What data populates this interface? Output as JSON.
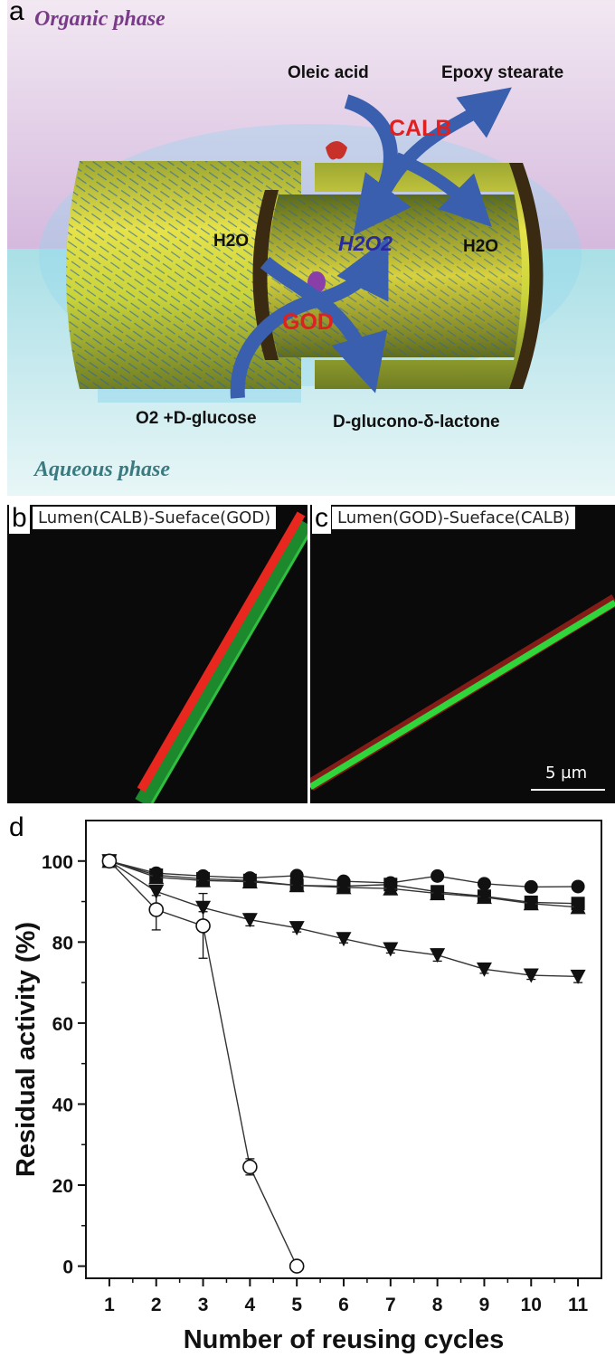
{
  "panel_a": {
    "letter": "a",
    "organic_phase": "Organic phase",
    "aqueous_phase": "Aqueous phase",
    "oleic_acid": "Oleic acid",
    "epoxy_stearate": "Epoxy stearate",
    "calb": "CALB",
    "god": "GOD",
    "h2o_left": "H2O",
    "h2o_right": "H2O",
    "h2o2": "H2O2",
    "o2_glucose": "O2 +D-glucose",
    "gluconolactone": "D-glucono-δ-lactone",
    "colors": {
      "enzyme_label": "#e0201e",
      "h2o2": "#2a2aa0",
      "arrow": "#3a5fae",
      "organic_bg": "#dcc7e3",
      "aqueous_bg": "#bfe6ea",
      "phase_text_top": "#7a3a8a",
      "phase_text_bottom": "#3a7a80"
    }
  },
  "panel_b": {
    "letter": "b",
    "title": "Lumen(CALB)-Sueface(GOD)"
  },
  "panel_c": {
    "letter": "c",
    "title": "Lumen(GOD)-Sueface(CALB)",
    "scale_bar": "5 µm"
  },
  "panel_d": {
    "letter": "d"
  },
  "chart_data": {
    "type": "line",
    "xlabel": "Number of reusing cycles",
    "ylabel": "Residual activity (%)",
    "xlim": [
      0.5,
      11.5
    ],
    "ylim": [
      -3,
      110
    ],
    "x_ticks": [
      1,
      2,
      3,
      4,
      5,
      6,
      7,
      8,
      9,
      10,
      11
    ],
    "y_ticks": [
      0,
      20,
      40,
      60,
      80,
      100
    ],
    "grid": false,
    "legend": "none",
    "series": [
      {
        "marker": "circle-filled",
        "x": [
          1,
          2,
          3,
          4,
          5,
          6,
          7,
          8,
          9,
          10,
          11
        ],
        "values": [
          100,
          97,
          96.3,
          95.8,
          96.4,
          95,
          94.6,
          96.3,
          94.4,
          93.6,
          93.7
        ]
      },
      {
        "marker": "square-filled",
        "x": [
          1,
          2,
          3,
          4,
          5,
          6,
          7,
          8,
          9,
          10,
          11
        ],
        "values": [
          100,
          96.5,
          95.6,
          95.2,
          94,
          93.8,
          94.2,
          92.4,
          91.3,
          89.8,
          89.5
        ]
      },
      {
        "marker": "triangle-up-filled",
        "x": [
          1,
          2,
          3,
          4,
          5,
          6,
          7,
          8,
          9,
          10,
          11
        ],
        "values": [
          100,
          96,
          95.2,
          94.9,
          94,
          93.5,
          93.2,
          92,
          91.1,
          89.5,
          88.6
        ]
      },
      {
        "marker": "triangle-down-filled",
        "x": [
          1,
          2,
          3,
          4,
          5,
          6,
          7,
          8,
          9,
          10,
          11
        ],
        "values": [
          100,
          92.5,
          88.5,
          85.5,
          83.5,
          80.8,
          78.3,
          76.8,
          73.3,
          71.8,
          71.5
        ],
        "errors": [
          0,
          1,
          1,
          1.5,
          1,
          1,
          1,
          1.5,
          1,
          1,
          1.5
        ]
      },
      {
        "marker": "circle-open",
        "x": [
          1,
          2,
          3,
          4,
          5
        ],
        "values": [
          100,
          88,
          84,
          24.5,
          0
        ],
        "errors": [
          0,
          5,
          8,
          2,
          0
        ]
      }
    ]
  }
}
